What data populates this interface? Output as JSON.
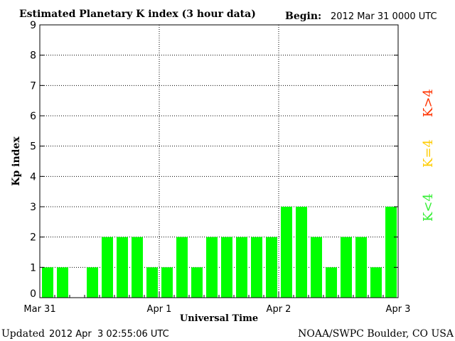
{
  "chart_data": {
    "type": "bar",
    "title": "Estimated Planetary K index (3 hour data)",
    "begin_label": "Begin:",
    "begin_value": "2012 Mar 31 0000 UTC",
    "xlabel": "Universal Time",
    "ylabel": "Kp index",
    "ylim": [
      0,
      9
    ],
    "yticks": [
      "0",
      "1",
      "2",
      "3",
      "4",
      "5",
      "6",
      "7",
      "8",
      "9"
    ],
    "xticks": [
      "Mar 31",
      "Apr 1",
      "Apr 2",
      "Apr 3"
    ],
    "grid": true,
    "bar_color": "#00ff00",
    "values": [
      1,
      1,
      0,
      1,
      2,
      2,
      2,
      1,
      1,
      2,
      1,
      2,
      2,
      2,
      2,
      2,
      3,
      3,
      2,
      1,
      2,
      2,
      1,
      3
    ],
    "legend": [
      {
        "label": "K<4",
        "color": "#33ee33"
      },
      {
        "label": "K=4",
        "color": "#ffcc00"
      },
      {
        "label": "K>4",
        "color": "#ff3300"
      }
    ]
  },
  "footer": {
    "updated_label": "Updated",
    "updated_value": "2012 Apr  3 02:55:06 UTC",
    "source": "NOAA/SWPC Boulder, CO USA"
  }
}
